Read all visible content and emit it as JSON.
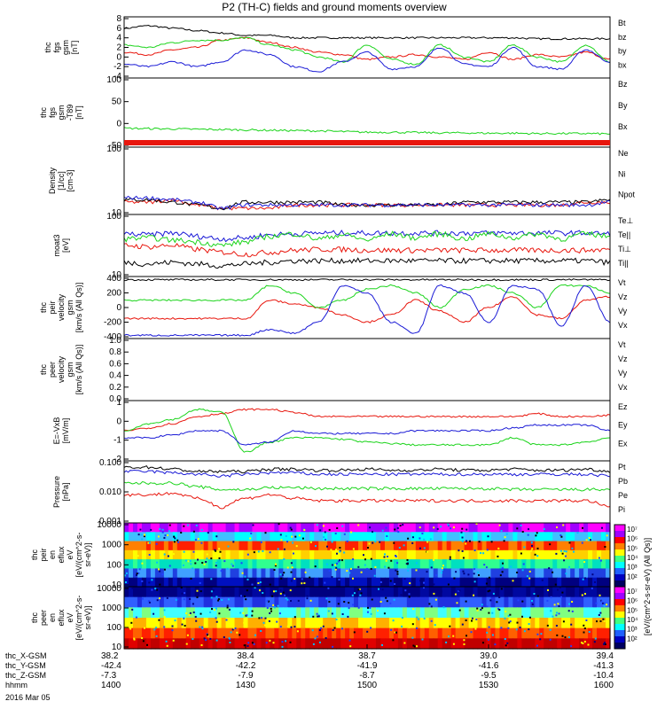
{
  "title": "P2 (TH-C) fields and ground moments overview",
  "date_label": "2016 Mar 05",
  "colors": {
    "black": "#000000",
    "red": "#e8160d",
    "green": "#1bd41b",
    "blue": "#1a1ad6"
  },
  "chart_data": [
    {
      "type": "line",
      "ylabel": [
        "thc",
        "fgs",
        "gsm",
        "[nT]"
      ],
      "yticks": [
        "8",
        "6",
        "4",
        "2",
        "0",
        "-2",
        "-4"
      ],
      "ylim": [
        -4,
        8
      ],
      "series": [
        {
          "name": "Bt",
          "color": "black",
          "values": [
            6.0,
            6.5,
            6.0,
            5.5,
            5.0,
            4.5,
            4.5,
            4.0,
            4.0,
            4.0,
            4.0,
            4.0,
            4.0,
            4.0,
            4.0,
            4.0,
            4.0,
            3.8,
            3.8,
            3.8,
            3.8
          ]
        },
        {
          "name": "bz",
          "color": "red",
          "values": [
            1.0,
            0.5,
            1.5,
            2.0,
            3.5,
            4.0,
            3.0,
            2.0,
            1.0,
            0.5,
            -0.5,
            0.0,
            0.5,
            0.0,
            -0.5,
            1.0,
            -0.5,
            0.5,
            0.0,
            1.0,
            -0.5
          ]
        },
        {
          "name": "by",
          "color": "green",
          "values": [
            2.5,
            2.0,
            3.0,
            3.5,
            3.5,
            4.0,
            2.5,
            1.5,
            0.0,
            -1.0,
            2.5,
            -0.5,
            -1.5,
            2.5,
            0.0,
            -1.0,
            2.5,
            0.0,
            -1.0,
            2.5,
            -1.0
          ]
        },
        {
          "name": "bx",
          "color": "blue",
          "values": [
            -1.5,
            -2.0,
            -1.0,
            -2.0,
            -1.0,
            1.5,
            0.5,
            -2.0,
            -3.0,
            -1.0,
            1.0,
            -2.5,
            -2.0,
            2.0,
            -1.5,
            -2.0,
            2.0,
            -2.0,
            -2.5,
            1.5,
            -1.0
          ]
        }
      ]
    },
    {
      "type": "line",
      "ylabel": [
        "thc",
        "fgs",
        "gsm",
        "-T89",
        "[nT]"
      ],
      "yticks": [
        "100",
        "50",
        "0",
        "-50"
      ],
      "ylim": [
        -100,
        100
      ],
      "series": [
        {
          "name": "Bz",
          "color": "red",
          "values": []
        },
        {
          "name": "By",
          "color": "green",
          "values": [
            -48,
            -49,
            -50,
            -51,
            -52,
            -53,
            -54,
            -55,
            -56,
            -58,
            -60,
            -60,
            -61,
            -62,
            -62,
            -63,
            -63,
            -64,
            -64,
            -64,
            -65
          ]
        },
        {
          "name": "Bx",
          "color": "blue",
          "values": []
        }
      ]
    },
    {
      "type": "line",
      "ylabel": [
        "Density",
        "[1/cc]",
        "[cm-3]"
      ],
      "yticks": [
        "100",
        "10"
      ],
      "yscale": "log",
      "ylim": [
        3,
        200
      ],
      "series": [
        {
          "name": "Ne",
          "color": "red",
          "values": [
            6,
            6,
            7,
            5,
            4,
            4,
            4,
            5,
            5,
            5,
            5,
            5,
            5,
            5,
            5,
            5,
            5,
            5,
            5,
            6,
            6
          ]
        },
        {
          "name": "Ni",
          "color": "black",
          "values": [
            7,
            7,
            6,
            5,
            4,
            6,
            6,
            6,
            6,
            5,
            5,
            5,
            5,
            5,
            6,
            6,
            6,
            6,
            6,
            6,
            7
          ]
        },
        {
          "name": "Npot",
          "color": "blue",
          "values": [
            8,
            8,
            7,
            6,
            4,
            5,
            5,
            5,
            5,
            5,
            5,
            5,
            5,
            5,
            5,
            5,
            5,
            5,
            5,
            5,
            6
          ]
        }
      ]
    },
    {
      "type": "line",
      "ylabel": [
        "moat3",
        "[eV]"
      ],
      "yticks": [
        "100",
        "10"
      ],
      "yscale": "log",
      "ylim": [
        8,
        110
      ],
      "series": [
        {
          "name": "Te⊥",
          "color": "red",
          "values": [
            30,
            28,
            30,
            25,
            22,
            20,
            22,
            24,
            25,
            25,
            24,
            24,
            24,
            24,
            24,
            24,
            24,
            24,
            24,
            24,
            25
          ]
        },
        {
          "name": "Te||",
          "color": "black",
          "values": [
            14,
            13,
            14,
            13,
            12,
            13,
            14,
            15,
            15,
            15,
            15,
            15,
            15,
            15,
            15,
            15,
            15,
            15,
            15,
            15,
            14
          ]
        },
        {
          "name": "Ti⊥",
          "color": "blue",
          "values": [
            50,
            48,
            52,
            45,
            40,
            42,
            48,
            50,
            52,
            52,
            52,
            52,
            52,
            52,
            52,
            52,
            52,
            52,
            52,
            52,
            50
          ]
        },
        {
          "name": "Ti||",
          "color": "green",
          "values": [
            40,
            42,
            38,
            35,
            30,
            35,
            45,
            50,
            40,
            48,
            38,
            50,
            42,
            50,
            40,
            50,
            42,
            50,
            40,
            50,
            45
          ]
        }
      ]
    },
    {
      "type": "line",
      "ylabel": [
        "thc",
        "peir",
        "velocity",
        "gsm",
        "[km/s (All Qs)]"
      ],
      "yticks": [
        "400",
        "200",
        "0",
        "-200",
        "-400"
      ],
      "ylim": [
        -400,
        400
      ],
      "series": [
        {
          "name": "Vt",
          "color": "black",
          "values": [
            380,
            380,
            380,
            380,
            380,
            380,
            380,
            380,
            380,
            380,
            380,
            380,
            380,
            380,
            380,
            380,
            380,
            380,
            380,
            380,
            380
          ]
        },
        {
          "name": "Vz",
          "color": "red",
          "values": [
            -150,
            -150,
            -150,
            -150,
            -150,
            -150,
            100,
            50,
            0,
            -100,
            -200,
            -100,
            100,
            -50,
            -200,
            0,
            150,
            -100,
            -150,
            100,
            150
          ]
        },
        {
          "name": "Vy",
          "color": "green",
          "values": [
            100,
            100,
            100,
            100,
            100,
            100,
            300,
            200,
            0,
            100,
            250,
            300,
            200,
            0,
            250,
            300,
            200,
            0,
            300,
            300,
            200
          ]
        },
        {
          "name": "Vx",
          "color": "blue",
          "values": [
            -380,
            -380,
            -380,
            -380,
            -380,
            -380,
            -300,
            -350,
            -200,
            300,
            200,
            -200,
            -350,
            300,
            200,
            -200,
            300,
            250,
            -250,
            300,
            -200
          ]
        }
      ]
    },
    {
      "type": "line",
      "ylabel": [
        "thc",
        "peer",
        "velocity",
        "gsm",
        "[km/s (All Qs)]"
      ],
      "yticks": [
        "1.0",
        "0.8",
        "0.6",
        "0.4",
        "0.2",
        "0.0"
      ],
      "ylim": [
        0,
        1
      ],
      "series": [
        {
          "name": "Vt",
          "color": "black",
          "values": []
        },
        {
          "name": "Vz",
          "color": "red",
          "values": []
        },
        {
          "name": "Vy",
          "color": "green",
          "values": []
        },
        {
          "name": "Vx",
          "color": "blue",
          "values": []
        }
      ]
    },
    {
      "type": "line",
      "ylabel": [
        "E=-VxB",
        "[mV/m]"
      ],
      "yticks": [
        "1",
        "0",
        "-1",
        "-2"
      ],
      "ylim": [
        -2,
        2
      ],
      "series": [
        {
          "name": "Ez",
          "color": "red",
          "values": [
            0.0,
            0.2,
            0.5,
            1.0,
            1.2,
            1.5,
            1.5,
            1.3,
            1.0,
            1.0,
            1.0,
            1.0,
            1.0,
            1.0,
            1.0,
            1.0,
            1.0,
            1.2,
            1.0,
            1.0,
            1.1
          ]
        },
        {
          "name": "Ey",
          "color": "green",
          "values": [
            0.0,
            0.5,
            0.8,
            1.5,
            1.3,
            -1.5,
            -0.8,
            -0.5,
            -0.5,
            -0.6,
            -0.8,
            -0.9,
            -1.0,
            -1.0,
            -1.0,
            -1.0,
            -0.5,
            -1.0,
            -1.0,
            -0.8,
            -0.5
          ]
        },
        {
          "name": "Ex",
          "color": "blue",
          "values": [
            -0.5,
            -0.5,
            -0.3,
            0.0,
            0.0,
            -1.0,
            -0.8,
            0.0,
            -0.2,
            -0.2,
            -0.2,
            -0.2,
            0.0,
            0.0,
            0.0,
            0.0,
            0.2,
            0.4,
            0.4,
            0.4,
            0.0
          ]
        }
      ]
    },
    {
      "type": "line",
      "ylabel": [
        "Pressure",
        "[nPa]"
      ],
      "yticks": [
        "0.100",
        "0.010",
        "0.001"
      ],
      "yscale": "log",
      "ylim": [
        0.001,
        0.1
      ],
      "series": [
        {
          "name": "Pt",
          "color": "black",
          "values": [
            0.07,
            0.07,
            0.06,
            0.05,
            0.05,
            0.05,
            0.06,
            0.06,
            0.055,
            0.055,
            0.06,
            0.055,
            0.055,
            0.06,
            0.055,
            0.055,
            0.06,
            0.055,
            0.055,
            0.06,
            0.05
          ]
        },
        {
          "name": "Pb",
          "color": "red",
          "values": [
            0.008,
            0.008,
            0.009,
            0.006,
            0.003,
            0.006,
            0.008,
            0.006,
            0.005,
            0.005,
            0.005,
            0.005,
            0.005,
            0.005,
            0.005,
            0.005,
            0.005,
            0.005,
            0.005,
            0.005,
            0.003
          ]
        },
        {
          "name": "Pe",
          "color": "green",
          "values": [
            0.02,
            0.02,
            0.02,
            0.015,
            0.012,
            0.012,
            0.014,
            0.014,
            0.013,
            0.013,
            0.013,
            0.013,
            0.013,
            0.013,
            0.013,
            0.013,
            0.012,
            0.012,
            0.012,
            0.012,
            0.012
          ]
        },
        {
          "name": "Pi",
          "color": "blue",
          "values": [
            0.05,
            0.05,
            0.045,
            0.04,
            0.035,
            0.04,
            0.045,
            0.045,
            0.04,
            0.04,
            0.04,
            0.04,
            0.04,
            0.04,
            0.04,
            0.04,
            0.04,
            0.04,
            0.04,
            0.04,
            0.035
          ]
        }
      ]
    },
    {
      "type": "heatmap",
      "ylabel": [
        "thc",
        "peir",
        "en",
        "eflux",
        "eV",
        "[eV/(cm^2-s-",
        "sr-eV)]"
      ],
      "yticks": [
        "10000",
        "1000",
        "100",
        "10"
      ],
      "yscale": "log",
      "ylim": [
        5,
        20000
      ],
      "bands": [
        [
          "#ff00ff",
          "#a000ff"
        ],
        [
          "#00ffff",
          "#40c0ff"
        ],
        [
          "#ff2000",
          "#ff8000"
        ],
        [
          "#ffd000",
          "#ffff00"
        ],
        [
          "#30ff90",
          "#00e0c0"
        ],
        [
          "#40a0ff",
          "#2040e0"
        ],
        [
          "#0010c0",
          "#000080"
        ]
      ]
    },
    {
      "type": "heatmap",
      "ylabel": [
        "thc",
        "peer",
        "en",
        "eflux",
        "eV",
        "[eV/(cm^2-s-",
        "sr-eV)]"
      ],
      "yticks": [
        "10000",
        "1000",
        "100",
        "10"
      ],
      "yscale": "log",
      "ylim": [
        5,
        20000
      ],
      "bands": [
        [
          "#0008a0",
          "#000080"
        ],
        [
          "#2030e0",
          "#3060ff"
        ],
        [
          "#40ffff",
          "#80ff80"
        ],
        [
          "#ffff00",
          "#ffb000"
        ],
        [
          "#ff6000",
          "#ff2000"
        ],
        [
          "#e00000",
          "#c00000"
        ]
      ]
    }
  ],
  "colorbar": {
    "labels": [
      "10⁷",
      "10⁶",
      "10⁵",
      "10⁴",
      "10³",
      "10²",
      "10⁷",
      "10⁶",
      "10⁵",
      "10⁴",
      "10³",
      "10²"
    ],
    "unit": "[eV/(cm^2-s-sr-eV) (All Qs)]"
  },
  "x_axis": {
    "row_labels": [
      "thc_X-GSM",
      "thc_Y-GSM",
      "thc_Z-GSM",
      "hhmm"
    ],
    "columns": [
      {
        "values": [
          "38.2",
          "-42.4",
          "-7.3",
          "1400"
        ]
      },
      {
        "values": [
          "38.4",
          "-42.2",
          "-7.9",
          "1430"
        ]
      },
      {
        "values": [
          "38.7",
          "-41.9",
          "-8.7",
          "1500"
        ]
      },
      {
        "values": [
          "39.0",
          "-41.6",
          "-9.5",
          "1530"
        ]
      },
      {
        "values": [
          "39.4",
          "-41.3",
          "-10.4",
          "1600"
        ]
      }
    ]
  }
}
